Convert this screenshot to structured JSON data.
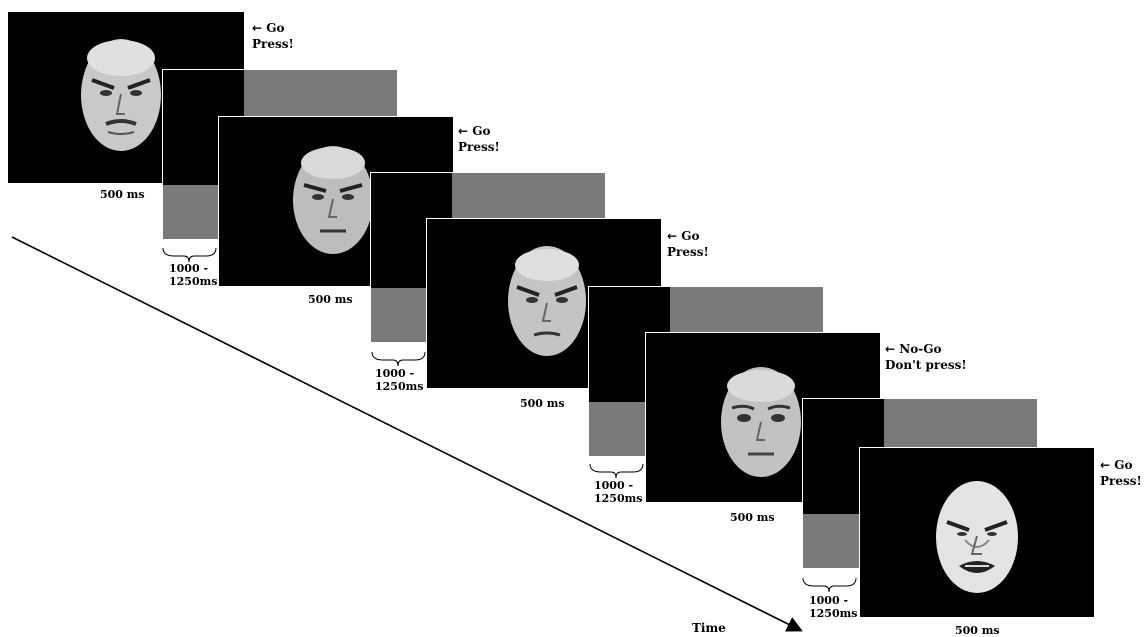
{
  "trials": [
    {
      "label": "Go",
      "instruction": "Press!",
      "duration": "500 ms",
      "expression": "angry-male-1"
    },
    {
      "label": "Go",
      "instruction": "Press!",
      "duration": "500 ms",
      "expression": "angry-male-2"
    },
    {
      "label": "Go",
      "instruction": "Press!",
      "duration": "500 ms",
      "expression": "angry-female"
    },
    {
      "label": "No-Go",
      "instruction": "Don't press!",
      "duration": "500 ms",
      "expression": "neutral-female"
    },
    {
      "label": "Go",
      "instruction": "Press!",
      "duration": "500 ms",
      "expression": "angry-female-snarl"
    }
  ],
  "isi": [
    {
      "line1": "1000 -",
      "line2": "1250ms"
    },
    {
      "line1": "1000 -",
      "line2": "1250ms"
    },
    {
      "line1": "1000 -",
      "line2": "1250ms"
    },
    {
      "line1": "1000 -",
      "line2": "1250ms"
    }
  ],
  "arrow_symbol": "←",
  "time_label": "Time",
  "colors": {
    "stimulus_bg": "#000000",
    "isi_gray": "#7a7a7a",
    "text": "#000000"
  }
}
